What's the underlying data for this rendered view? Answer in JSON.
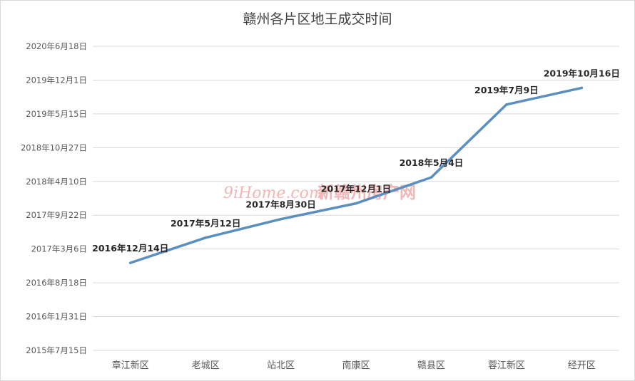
{
  "chart_data": {
    "type": "line",
    "title": "赣州各片区地王成交时间",
    "categories": [
      "章江新区",
      "老城区",
      "站北区",
      "南康区",
      "赣县区",
      "蓉江新区",
      "经开区"
    ],
    "values": [
      "2016-12-14",
      "2017-05-12",
      "2017-08-30",
      "2017-12-01",
      "2018-05-04",
      "2019-07-09",
      "2019-10-16"
    ],
    "data_labels": [
      "2016年12月14日",
      "2017年5月12日",
      "2017年8月30日",
      "2017年12月1日",
      "2018年5月4日",
      "2019年7月9日",
      "2019年10月16日"
    ],
    "y_axis": {
      "type": "date",
      "tick_values": [
        "2015-07-15",
        "2016-01-31",
        "2016-08-18",
        "2017-03-06",
        "2017-09-22",
        "2018-04-10",
        "2018-10-27",
        "2019-05-15",
        "2019-12-01",
        "2020-06-18"
      ],
      "tick_labels": [
        "2015年7月15日",
        "2016年1月31日",
        "2016年8月18日",
        "2017年3月6日",
        "2017年9月22日",
        "2018年4月10日",
        "2018年10月27日",
        "2019年5月15日",
        "2019年12月1日",
        "2020年6月18日"
      ],
      "ylim": [
        "2015-07-15",
        "2020-06-18"
      ]
    },
    "grid": true,
    "legend": "none",
    "colors": {
      "line": "#5b8fbf",
      "grid": "#d9d9d9",
      "text": "#595959"
    }
  },
  "watermark": {
    "text_latin": "9iHome.com",
    "text_cn": "新赣州房产网"
  }
}
